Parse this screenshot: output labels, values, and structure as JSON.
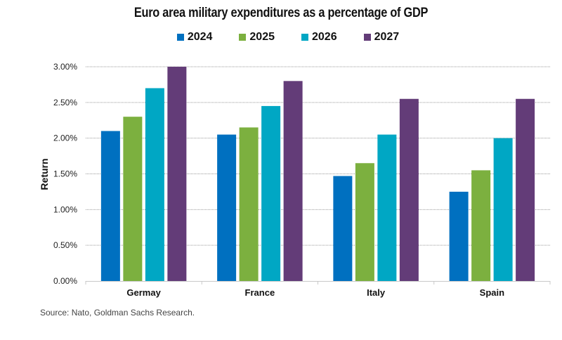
{
  "chart_data": {
    "type": "bar",
    "title": "Euro area military expenditures as a percentage of GDP",
    "xlabel": "",
    "ylabel": "Return",
    "ylim": [
      0,
      3.0
    ],
    "yticks": [
      0,
      0.5,
      1.0,
      1.5,
      2.0,
      2.5,
      3.0
    ],
    "ytick_labels": [
      "0.00%",
      "0.50%",
      "1.00%",
      "1.50%",
      "2.00%",
      "2.50%",
      "3.00%"
    ],
    "grid": true,
    "legend_position": "top-center",
    "categories": [
      "Germay",
      "France",
      "Italy",
      "Spain"
    ],
    "series": [
      {
        "name": "2024",
        "color": "#0070C0",
        "values": [
          2.1,
          2.05,
          1.47,
          1.25
        ]
      },
      {
        "name": "2025",
        "color": "#7CB03F",
        "values": [
          2.3,
          2.15,
          1.65,
          1.55
        ]
      },
      {
        "name": "2026",
        "color": "#00A7C4",
        "values": [
          2.7,
          2.45,
          2.05,
          2.0
        ]
      },
      {
        "name": "2027",
        "color": "#633C78",
        "values": [
          3.0,
          2.8,
          2.55,
          2.55
        ]
      }
    ],
    "source": "Source: Nato, Goldman Sachs Research."
  }
}
